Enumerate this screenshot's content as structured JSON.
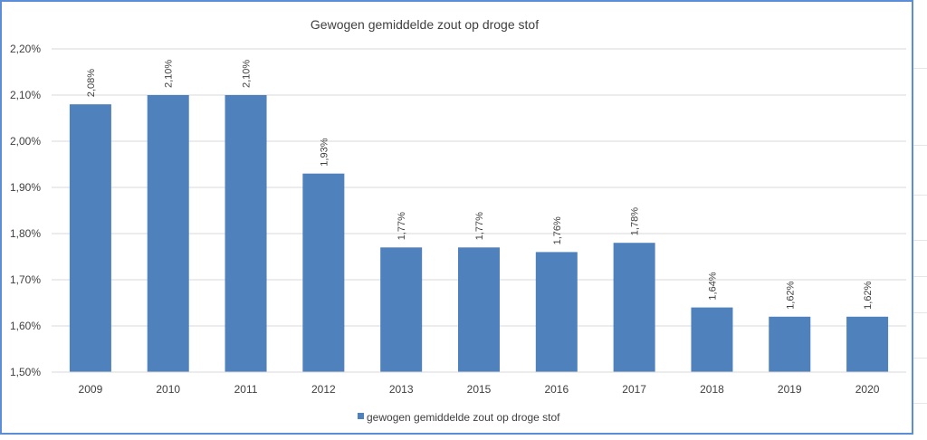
{
  "chart_data": {
    "type": "bar",
    "title": "Gewogen gemiddelde zout op droge stof",
    "categories": [
      "2009",
      "2010",
      "2011",
      "2012",
      "2013",
      "2015",
      "2016",
      "2017",
      "2018",
      "2019",
      "2020"
    ],
    "series": [
      {
        "name": "gewogen gemiddelde zout op droge stof",
        "values": [
          2.08,
          2.1,
          2.1,
          1.93,
          1.77,
          1.77,
          1.76,
          1.78,
          1.64,
          1.62,
          1.62
        ],
        "labels": [
          "2,08%",
          "2,10%",
          "2,10%",
          "1,93%",
          "1,77%",
          "1,77%",
          "1,76%",
          "1,78%",
          "1,64%",
          "1,62%",
          "1,62%"
        ],
        "color": "#4f81bd"
      }
    ],
    "ylim": [
      1.5,
      2.2
    ],
    "yticks": [
      2.2,
      2.1,
      2.0,
      1.9,
      1.8,
      1.7,
      1.6,
      1.5
    ],
    "ytick_labels": [
      "2,20%",
      "2,10%",
      "2,00%",
      "1,90%",
      "1,80%",
      "1,70%",
      "1,60%",
      "1,50%"
    ],
    "xlabel": "",
    "ylabel": "",
    "grid": true,
    "legend": "bottom",
    "colors": {
      "bar": "#4f81bd",
      "grid": "#d9d9d9",
      "border": "#5b8ed6",
      "text": "#404040"
    }
  }
}
